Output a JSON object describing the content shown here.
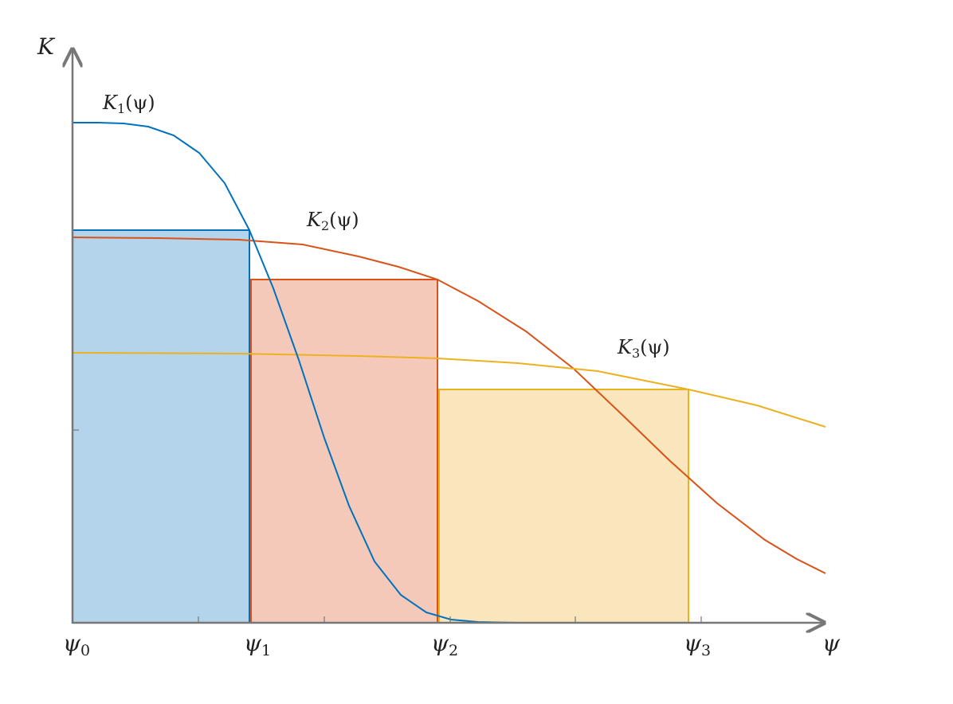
{
  "chart_data": {
    "type": "line",
    "y_axis_label": "K",
    "x_axis_label": "ψ",
    "x_tick_labels": [
      {
        "base": "ψ",
        "sub": "0"
      },
      {
        "base": "ψ",
        "sub": "1"
      },
      {
        "base": "ψ",
        "sub": "2"
      },
      {
        "base": "ψ",
        "sub": "3"
      }
    ],
    "series": [
      {
        "name": "K1(ψ)",
        "label_base": "K",
        "label_sub": "1",
        "label_arg": "(ψ)",
        "color": "#0072BD"
      },
      {
        "name": "K2(ψ)",
        "label_base": "K",
        "label_sub": "2",
        "label_arg": "(ψ)",
        "color": "#D95319"
      },
      {
        "name": "K3(ψ)",
        "label_base": "K",
        "label_sub": "3",
        "label_arg": "(ψ)",
        "color": "#EDB120"
      }
    ],
    "rectangles": [
      {
        "series": "K1(ψ)",
        "x_start": "ψ0",
        "x_end": "ψ1",
        "fill": "#B3D4EA",
        "stroke": "#0072BD"
      },
      {
        "series": "K2(ψ)",
        "x_start": "ψ1",
        "x_end": "ψ2",
        "fill": "#F4C9BA",
        "stroke": "#D95319"
      },
      {
        "series": "K3(ψ)",
        "x_start": "ψ2",
        "x_end": "ψ3",
        "fill": "#F9E6BC",
        "stroke": "#EDB120"
      }
    ]
  }
}
